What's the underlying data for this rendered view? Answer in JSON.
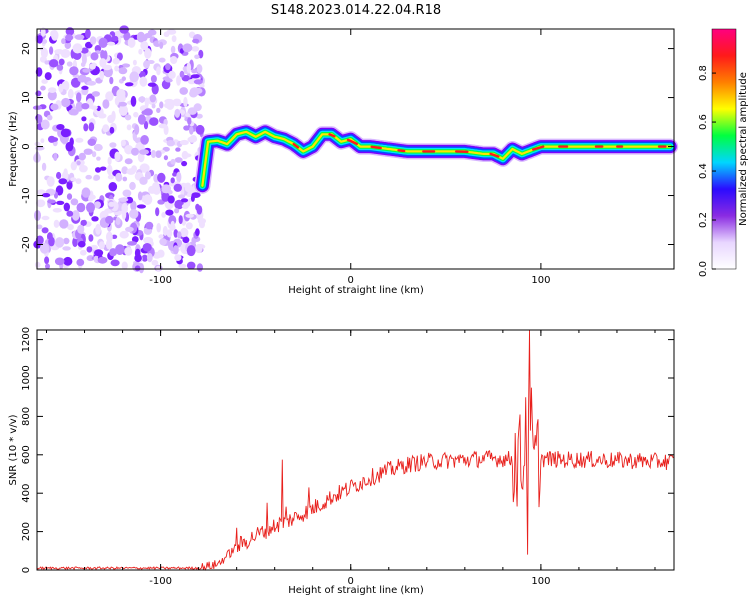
{
  "title": "S148.2023.014.22.04.R18",
  "chart_data": [
    {
      "type": "heatmap",
      "xlabel": "Height of straight line (km)",
      "ylabel": "Frequency (Hz)",
      "xlim": [
        -165,
        170
      ],
      "ylim": [
        -25,
        24
      ],
      "xticks": [
        -100,
        0,
        100
      ],
      "yticks": [
        -20,
        -10,
        0,
        10,
        20
      ],
      "colorbar": {
        "label": "Normalized spectral amplitude",
        "range": [
          0.0,
          0.98
        ],
        "ticks": [
          "0.0",
          "0.2",
          "0.4",
          "0.6",
          "0.8"
        ],
        "colormap": [
          "#ffffff",
          "#e8d6ff",
          "#8a2be2",
          "#2b0bff",
          "#00d6ff",
          "#00ff40",
          "#ffff00",
          "#ff7f00",
          "#ff1a1a",
          "#ff007f"
        ]
      },
      "noise_region": {
        "x_range": [
          -165,
          -78
        ],
        "y_range": [
          -25,
          24
        ]
      },
      "ridge": {
        "x": [
          -78,
          -75,
          -70,
          -65,
          -60,
          -55,
          -50,
          -45,
          -40,
          -35,
          -30,
          -25,
          -20,
          -15,
          -10,
          -5,
          0,
          5,
          10,
          20,
          30,
          40,
          50,
          60,
          70,
          75,
          80,
          85,
          90,
          100,
          110,
          120,
          130,
          140,
          150,
          160,
          168
        ],
        "y": [
          -8,
          1.0,
          1.2,
          0.5,
          2.5,
          3.0,
          2.0,
          3.0,
          2.0,
          1.5,
          0.5,
          -1.0,
          0.0,
          2.5,
          2.5,
          1.0,
          1.5,
          0.0,
          0.0,
          -0.5,
          -1.0,
          -1.0,
          -1.0,
          -1.0,
          -1.5,
          -1.5,
          -2.5,
          -0.5,
          -1.5,
          0.0,
          0.0,
          0.0,
          0.0,
          0.0,
          0.0,
          0.0,
          0.0
        ]
      }
    },
    {
      "type": "line",
      "xlabel": "Height of straight line (km)",
      "ylabel": "SNR (10 * v/v)",
      "xlim": [
        -165,
        170
      ],
      "ylim": [
        0,
        1250
      ],
      "xticks": [
        -100,
        0,
        100
      ],
      "yticks": [
        0,
        200,
        400,
        600,
        800,
        1000,
        1200
      ],
      "color": "#e8201c",
      "envelope_x": [
        -165,
        -80,
        -70,
        -60,
        -50,
        -40,
        -30,
        -20,
        -10,
        0,
        10,
        20,
        30,
        40,
        50,
        60,
        70,
        80,
        90,
        95,
        100,
        110,
        120,
        130,
        140,
        150,
        160,
        170
      ],
      "envelope_y": [
        10,
        10,
        30,
        120,
        180,
        230,
        270,
        320,
        380,
        430,
        480,
        520,
        550,
        565,
        570,
        575,
        580,
        580,
        570,
        560,
        580,
        575,
        575,
        575,
        570,
        570,
        565,
        565
      ],
      "spikes": [
        {
          "x": -60,
          "y": 220
        },
        {
          "x": -44,
          "y": 350
        },
        {
          "x": -36,
          "y": 575
        },
        {
          "x": -34,
          "y": 330
        },
        {
          "x": -22,
          "y": 430
        },
        {
          "x": 92,
          "y": 900
        },
        {
          "x": 93,
          "y": 80
        },
        {
          "x": 94,
          "y": 1250
        },
        {
          "x": 95,
          "y": 950
        }
      ]
    }
  ]
}
